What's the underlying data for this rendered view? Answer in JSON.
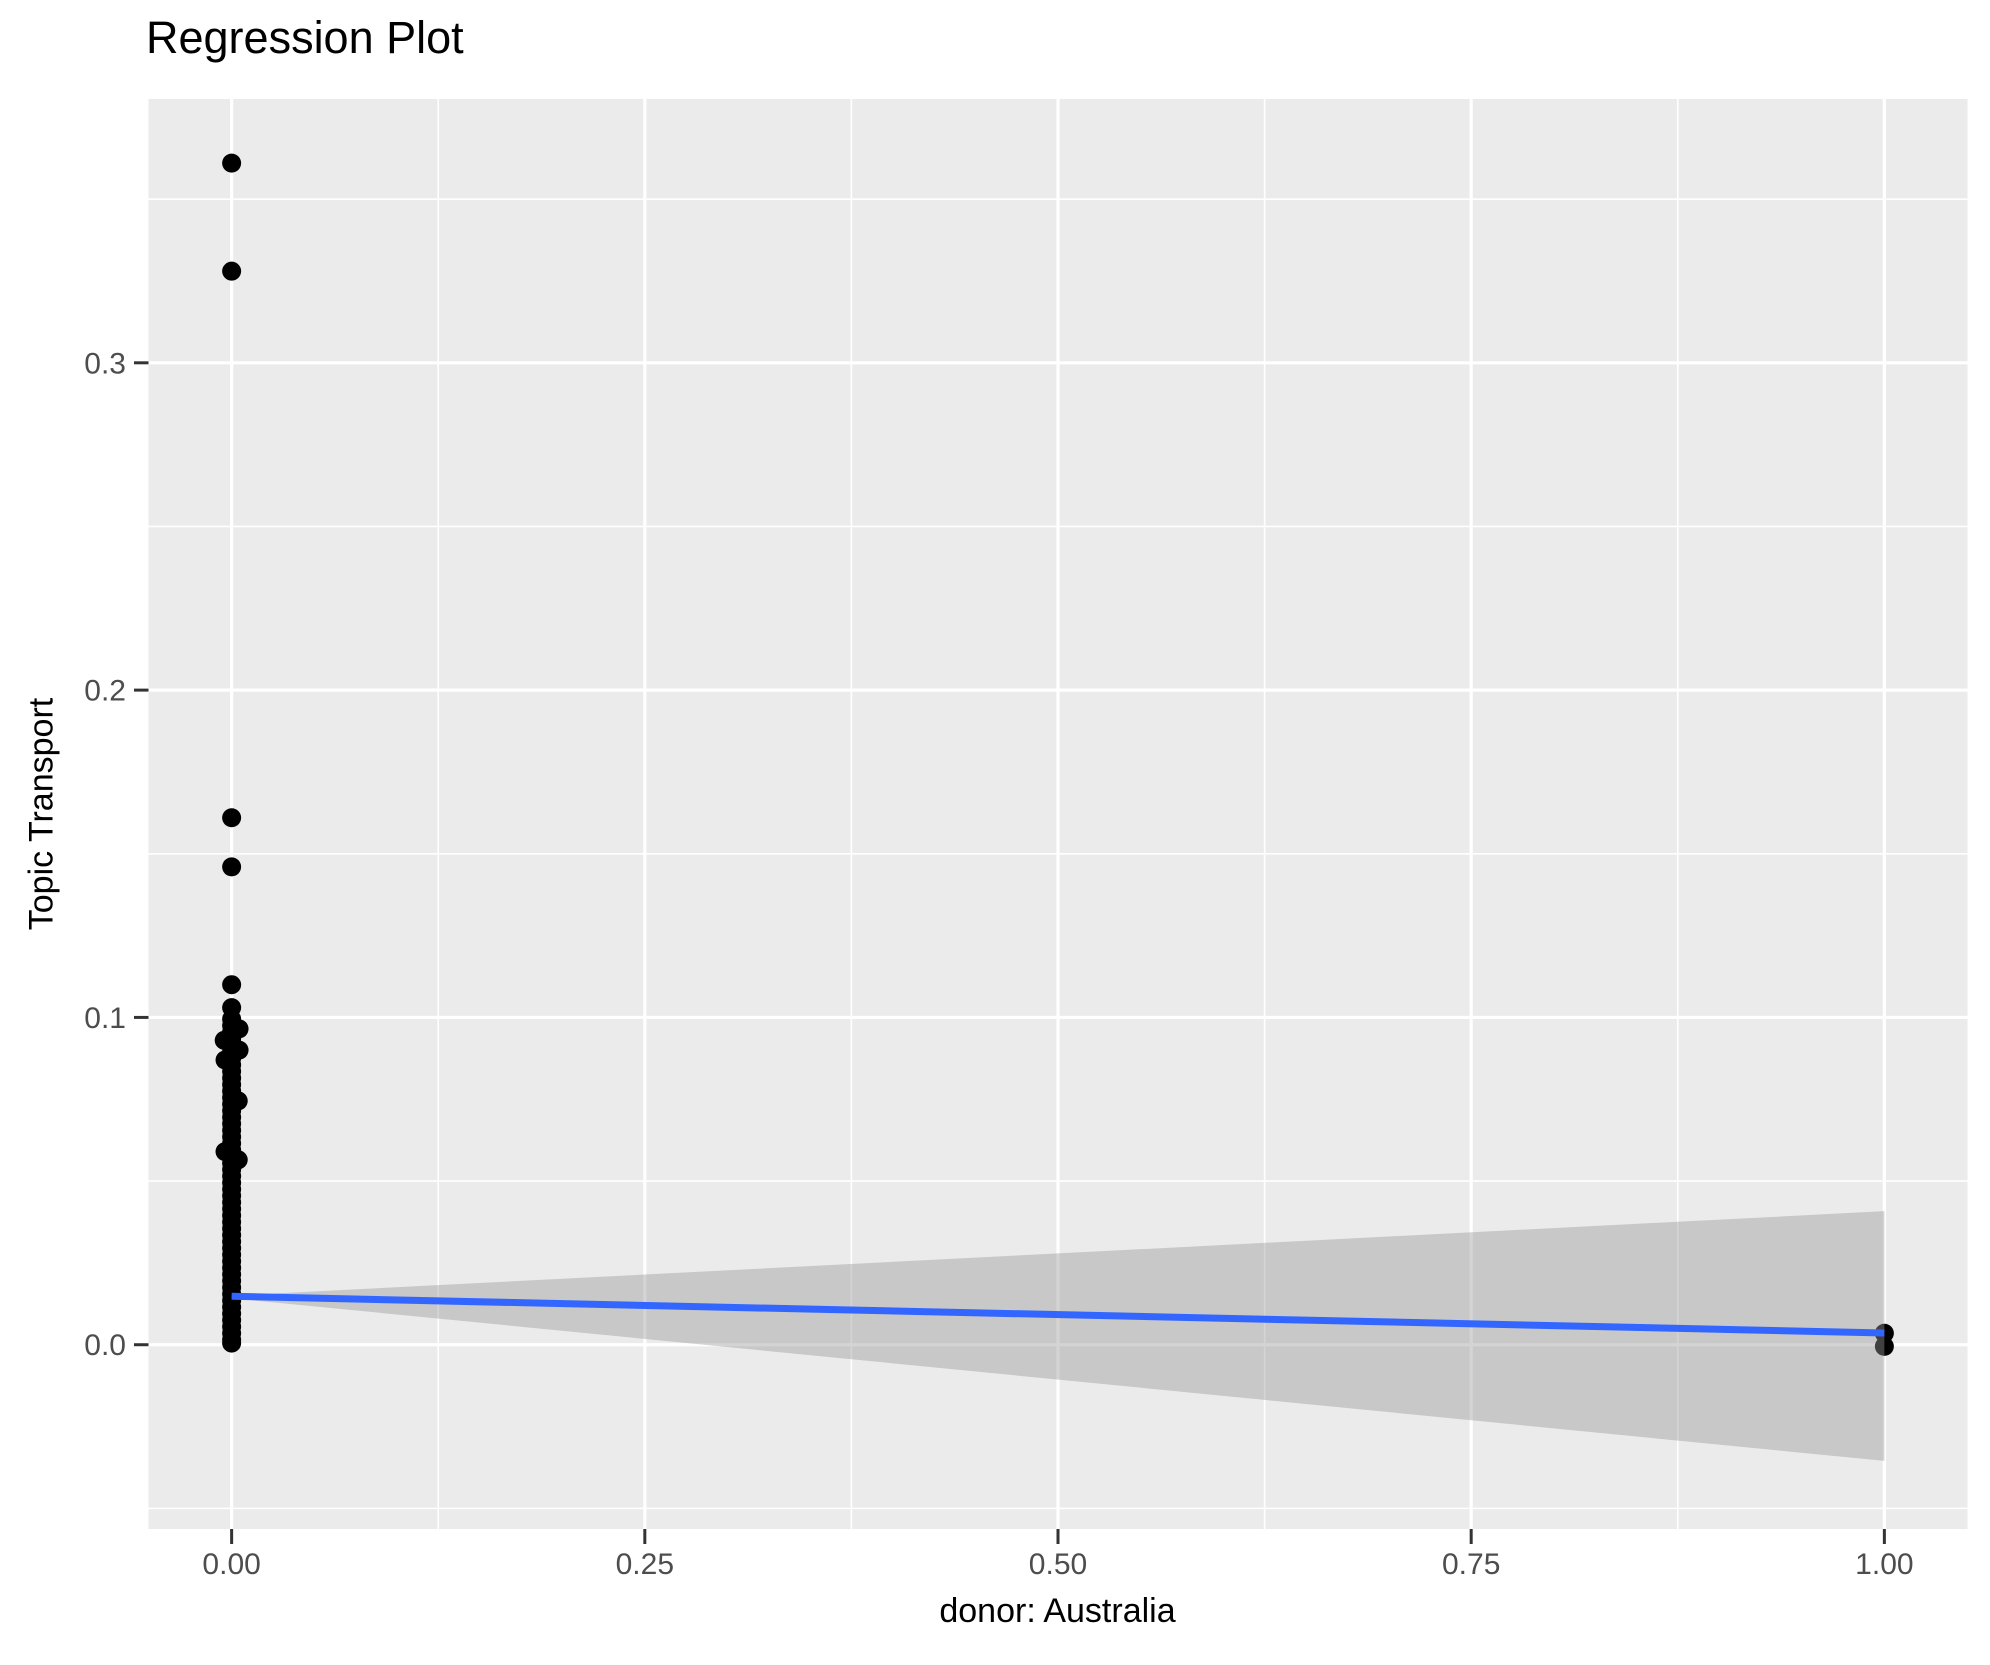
{
  "chart_data": {
    "type": "scatter",
    "title": "Regression Plot",
    "xlabel": "donor: Australia",
    "ylabel": "Topic Transport",
    "xlim": [
      -0.0503,
      1.0503
    ],
    "ylim": [
      -0.0563,
      0.3806
    ],
    "grid": "on",
    "legend": "none",
    "x_ticks": {
      "values": [
        0,
        0.25,
        0.5,
        0.75,
        1
      ],
      "labels": [
        "0.00",
        "0.25",
        "0.50",
        "0.75",
        "1.00"
      ]
    },
    "y_ticks": {
      "values": [
        0,
        0.1,
        0.2,
        0.3
      ],
      "labels": [
        "0.0",
        "0.1",
        "0.2",
        "0.3"
      ]
    },
    "x_minor": [
      0.125,
      0.375,
      0.625,
      0.875
    ],
    "y_minor": [
      -0.05,
      0.05,
      0.15,
      0.25,
      0.35
    ],
    "series": [
      {
        "name": "observations",
        "type": "points",
        "color": "#000000",
        "points": [
          [
            0,
            0.361
          ],
          [
            0,
            0.328
          ],
          [
            0,
            0.161
          ],
          [
            0,
            0.146
          ],
          [
            0,
            0.11
          ],
          [
            0,
            0.103
          ],
          [
            0,
            0.0995
          ],
          [
            0,
            0.0975
          ],
          [
            0,
            0.0955
          ],
          [
            0,
            0.0935
          ],
          [
            0,
            0.0915
          ],
          [
            0,
            0.0895
          ],
          [
            0,
            0.0875
          ],
          [
            0,
            0.0855
          ],
          [
            0,
            0.0835
          ],
          [
            0,
            0.0815
          ],
          [
            0,
            0.0795
          ],
          [
            0,
            0.0775
          ],
          [
            0,
            0.0755
          ],
          [
            0,
            0.0735
          ],
          [
            0,
            0.0715
          ],
          [
            0,
            0.0695
          ],
          [
            0,
            0.0675
          ],
          [
            0,
            0.0655
          ],
          [
            0,
            0.0635
          ],
          [
            0,
            0.0615
          ],
          [
            0,
            0.0595
          ],
          [
            0,
            0.0575
          ],
          [
            0,
            0.0555
          ],
          [
            0,
            0.0535
          ],
          [
            0,
            0.0515
          ],
          [
            0,
            0.0495
          ],
          [
            0,
            0.0475
          ],
          [
            0,
            0.0455
          ],
          [
            0,
            0.0435
          ],
          [
            0,
            0.0415
          ],
          [
            0,
            0.0395
          ],
          [
            0,
            0.0375
          ],
          [
            0,
            0.0355
          ],
          [
            0,
            0.0335
          ],
          [
            0,
            0.0315
          ],
          [
            0,
            0.0295
          ],
          [
            0,
            0.0275
          ],
          [
            0,
            0.0255
          ],
          [
            0,
            0.0235
          ],
          [
            0,
            0.0215
          ],
          [
            0,
            0.0195
          ],
          [
            0,
            0.0175
          ],
          [
            0,
            0.0155
          ],
          [
            0,
            0.0135
          ],
          [
            0,
            0.0115
          ],
          [
            0,
            0.0095
          ],
          [
            0,
            0.0075
          ],
          [
            0,
            0.0055
          ],
          [
            0,
            0.0035
          ],
          [
            0,
            0.0015
          ],
          [
            0,
            0.0005
          ],
          [
            0.0045,
            0.0965
          ],
          [
            -0.0045,
            0.093
          ],
          [
            0.0045,
            0.09
          ],
          [
            -0.004,
            0.087
          ],
          [
            0.004,
            0.0745
          ],
          [
            -0.004,
            0.059
          ],
          [
            0.004,
            0.0565
          ],
          [
            1,
            0.0035
          ],
          [
            1,
            -0.0005
          ]
        ]
      },
      {
        "name": "confidence-band",
        "type": "band",
        "color": "#999999",
        "opacity": 0.42,
        "upper": [
          [
            0,
            0.015
          ],
          [
            1,
            0.0408
          ]
        ],
        "lower": [
          [
            0,
            0.0142
          ],
          [
            1,
            -0.0355
          ]
        ]
      },
      {
        "name": "regression-line",
        "type": "line",
        "color": "#3366FF",
        "width": 7,
        "points": [
          [
            0,
            0.0148
          ],
          [
            1,
            0.0036
          ]
        ]
      }
    ],
    "style": {
      "panel_bg": "#EBEBEB",
      "grid_color": "#FFFFFF",
      "tick_label_color": "#4D4D4D",
      "tick_mark_color": "#333333",
      "point_radius": 9.5,
      "background": "#FFFFFF"
    }
  }
}
